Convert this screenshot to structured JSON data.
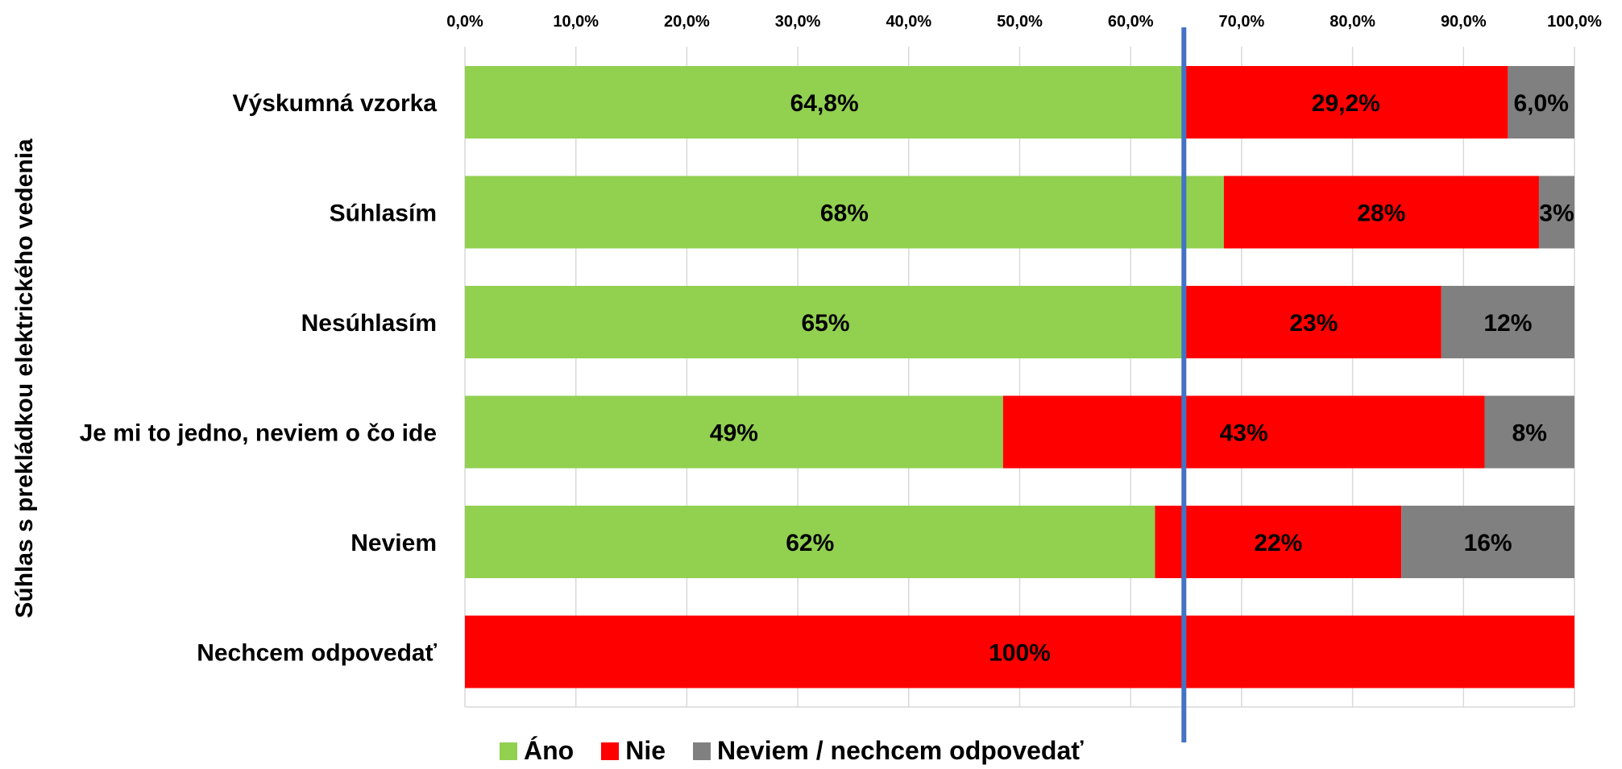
{
  "chart_data": {
    "type": "bar",
    "orientation": "horizontal",
    "stacked": "100%",
    "ylabel": "Súhlas s prekládkou elektrického  vedenia",
    "categories": [
      "Výskumná vzorka",
      "Súhlasím",
      "Nesúhlasím",
      "Je mi to jedno, neviem o čo ide",
      "Neviem",
      "Nechcem odpovedať"
    ],
    "x_ticks": [
      "0,0%",
      "10,0%",
      "20,0%",
      "30,0%",
      "40,0%",
      "50,0%",
      "60,0%",
      "70,0%",
      "80,0%",
      "90,0%",
      "100,0%"
    ],
    "xlim": [
      0,
      100
    ],
    "x_axis_position": "top",
    "grid": true,
    "reference_line": {
      "value": 64.8,
      "color": "#4472C4"
    },
    "legend_position": "bottom",
    "series": [
      {
        "name": "Áno",
        "color": "#92D050",
        "values": [
          64.8,
          68.4,
          65.0,
          48.5,
          62.2,
          0
        ],
        "labels": [
          "64,8%",
          "68%",
          "65%",
          "49%",
          "62%",
          ""
        ]
      },
      {
        "name": "Nie",
        "color": "#FF0000",
        "values": [
          29.2,
          28.4,
          23.0,
          43.4,
          22.2,
          100
        ],
        "labels": [
          "29,2%",
          "28%",
          "23%",
          "43%",
          "22%",
          "100%"
        ]
      },
      {
        "name": "Neviem / nechcem odpovedať",
        "color": "#808080",
        "values": [
          6.0,
          3.2,
          12.0,
          8.1,
          15.6,
          0
        ],
        "labels": [
          "6,0%",
          "3%",
          "12%",
          "8%",
          "16%",
          ""
        ]
      }
    ]
  }
}
